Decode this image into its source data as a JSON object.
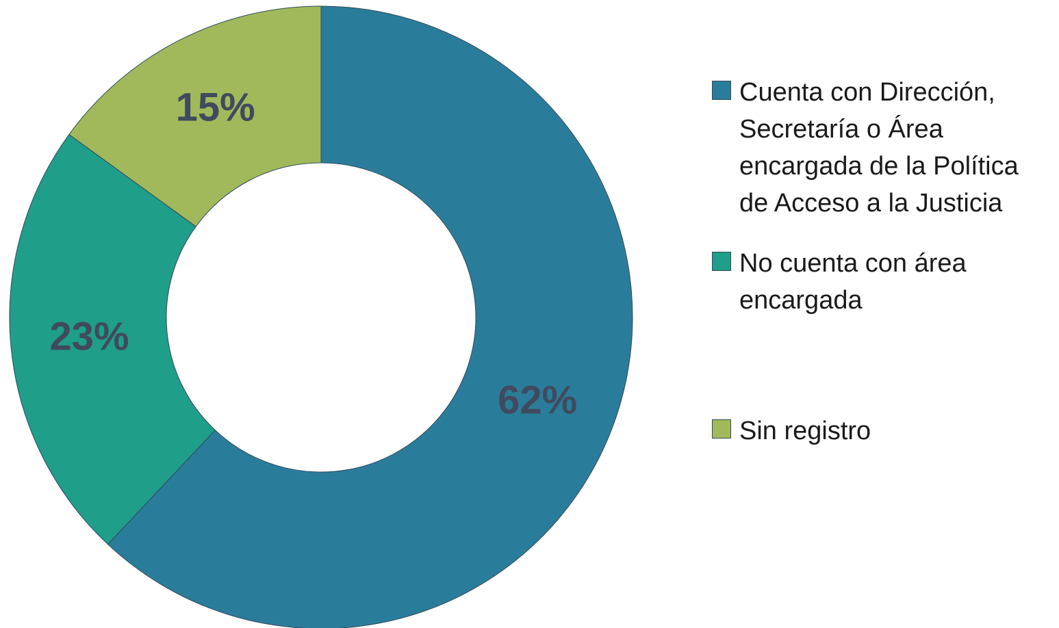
{
  "chart_data": {
    "type": "donut",
    "categories": [
      "Cuenta con Dirección, Secretaría o Área encargada de la Política de Acceso a la Justicia",
      "No cuenta con área encargada",
      "Sin registro"
    ],
    "values": [
      62,
      23,
      15
    ],
    "value_labels": [
      "62%",
      "23%",
      "15%"
    ],
    "colors": [
      "#2a7d9a",
      "#1f9e89",
      "#a2b95b"
    ],
    "legend": "right"
  }
}
